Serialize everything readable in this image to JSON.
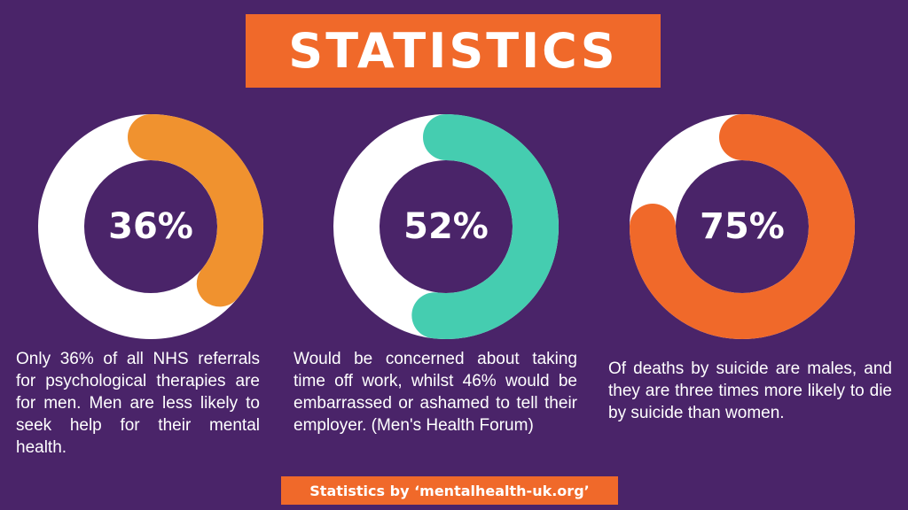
{
  "title": "STATISTICS",
  "chart_data": [
    {
      "type": "pie",
      "label": "36%",
      "value": 36,
      "color": "#f0922f",
      "track_color": "#ffffff",
      "description": "Only 36% of all NHS referrals for psychological therapies are for men. Men are less likely to seek help for their mental health."
    },
    {
      "type": "pie",
      "label": "52%",
      "value": 52,
      "color": "#45cdb0",
      "track_color": "#ffffff",
      "description": "Would be concerned about taking time off work, whilst 46% would be embarrassed or ashamed to tell their employer. (Men's Health Forum)"
    },
    {
      "type": "pie",
      "label": "75%",
      "value": 75,
      "color": "#f0692a",
      "track_color": "#ffffff",
      "description": "Of deaths by suicide are males, and they are three times more likely to die by suicide than women."
    }
  ],
  "footer": "Statistics by ‘mentalhealth-uk.org’"
}
